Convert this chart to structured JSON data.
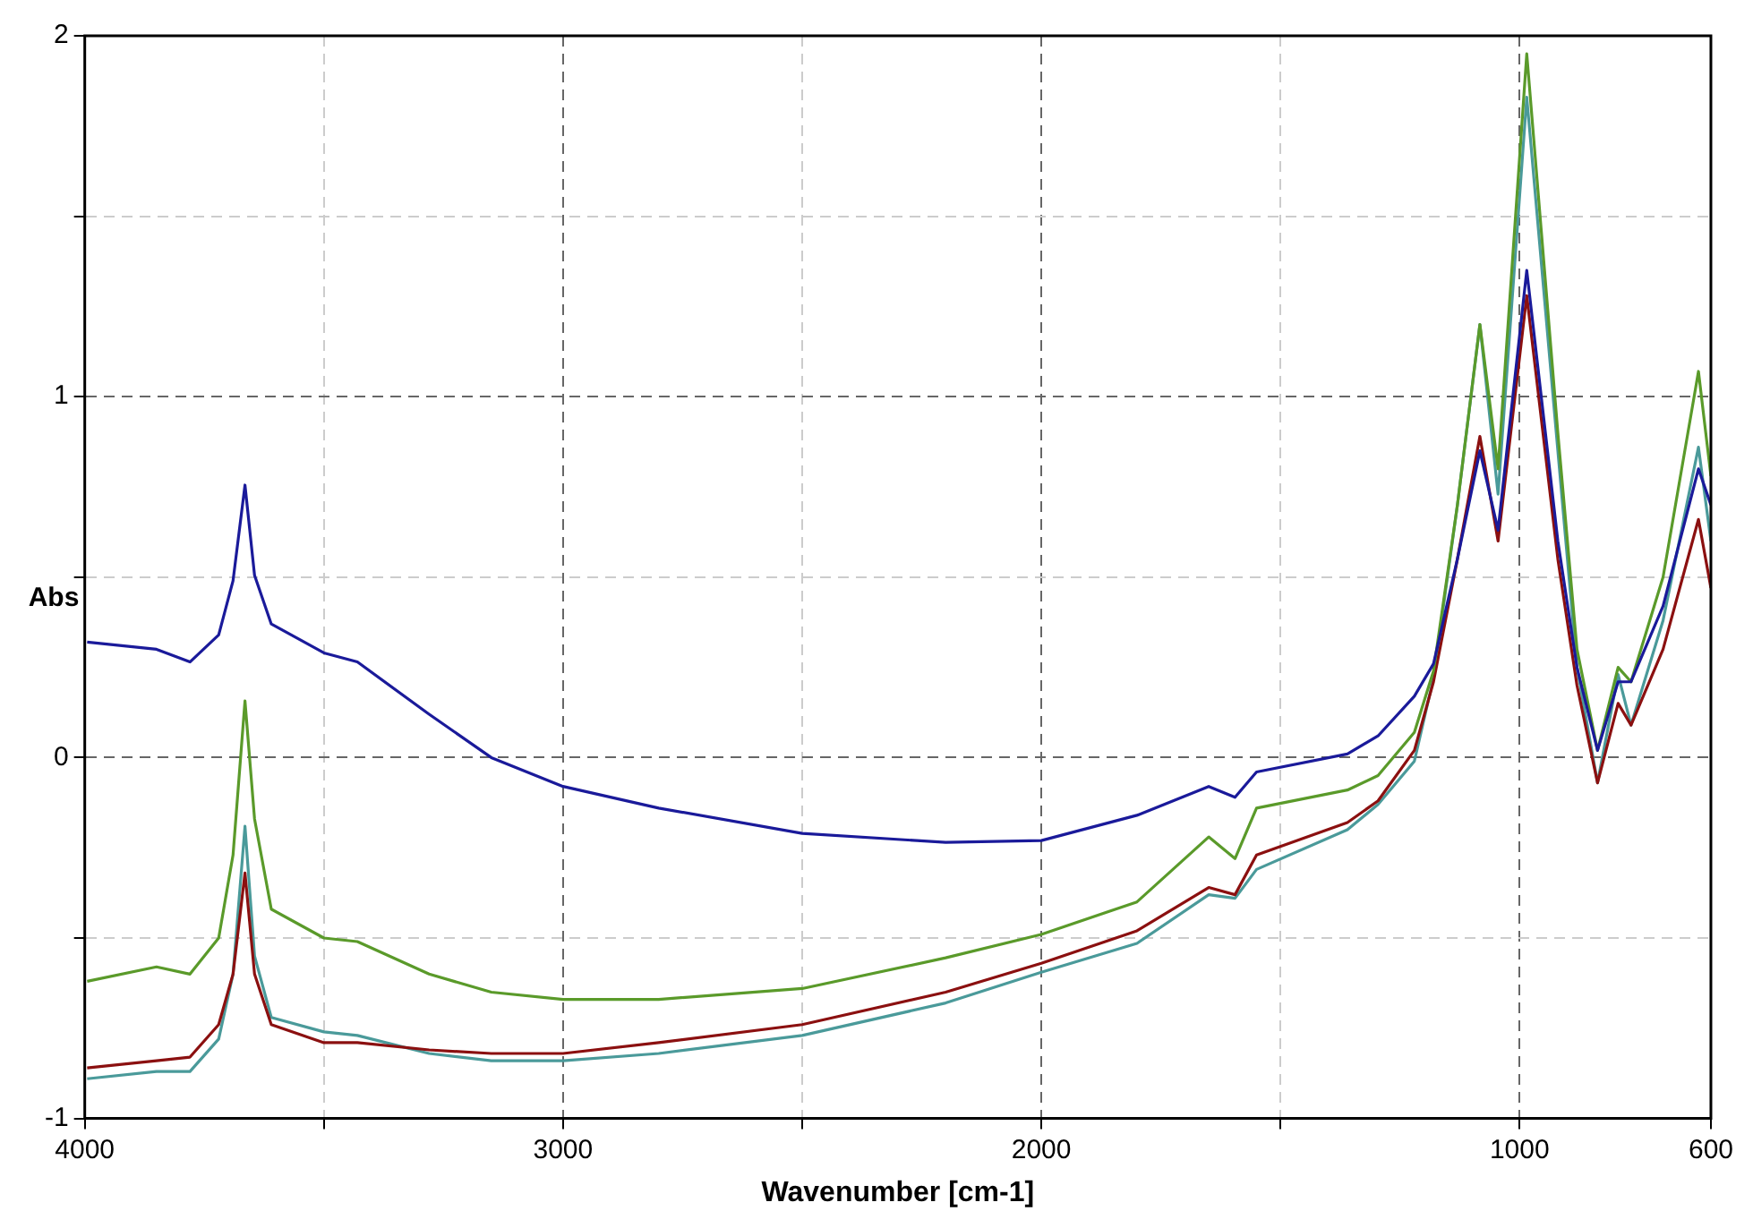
{
  "chart_data": {
    "type": "line",
    "xlabel": "Wavenumber [cm-1]",
    "ylabel": "Abs",
    "x": [
      3995,
      3850,
      3780,
      3720,
      3690,
      3665,
      3645,
      3610,
      3500,
      3430,
      3280,
      3150,
      3000,
      2800,
      2500,
      2200,
      2000,
      1800,
      1650,
      1595,
      1550,
      1360,
      1296,
      1220,
      1180,
      1130,
      1083,
      1045,
      985,
      920,
      880,
      837,
      794,
      767,
      700,
      626,
      600
    ],
    "series": [
      {
        "color": "#1a1a9a",
        "values": [
          0.32,
          0.3,
          0.265,
          0.34,
          0.49,
          0.755,
          0.505,
          0.37,
          0.29,
          0.265,
          0.12,
          0,
          -0.08,
          -0.14,
          -0.21,
          -0.235,
          -0.23,
          -0.16,
          -0.08,
          -0.11,
          -0.04,
          0.01,
          0.06,
          0.17,
          0.26,
          0.55,
          0.85,
          0.63,
          1.35,
          0.6,
          0.25,
          0.02,
          0.21,
          0.21,
          0.42,
          0.8,
          0.7
        ]
      },
      {
        "color": "#5a9a2a",
        "values": [
          -0.62,
          -0.58,
          -0.6,
          -0.5,
          -0.27,
          0.157,
          -0.17,
          -0.42,
          -0.5,
          -0.51,
          -0.6,
          -0.65,
          -0.67,
          -0.67,
          -0.64,
          -0.555,
          -0.49,
          -0.4,
          -0.22,
          -0.28,
          -0.14,
          -0.09,
          -0.05,
          0.07,
          0.24,
          0.7,
          1.2,
          0.8,
          1.95,
          0.9,
          0.3,
          0.02,
          0.25,
          0.21,
          0.5,
          1.07,
          0.78
        ]
      },
      {
        "color": "#8b1010",
        "values": [
          -0.86,
          -0.84,
          -0.83,
          -0.74,
          -0.6,
          -0.32,
          -0.6,
          -0.74,
          -0.79,
          -0.79,
          -0.81,
          -0.82,
          -0.82,
          -0.79,
          -0.74,
          -0.65,
          -0.57,
          -0.48,
          -0.36,
          -0.38,
          -0.27,
          -0.18,
          -0.12,
          0.02,
          0.21,
          0.55,
          0.89,
          0.6,
          1.28,
          0.55,
          0.2,
          -0.07,
          0.15,
          0.09,
          0.3,
          0.66,
          0.47
        ]
      },
      {
        "color": "#4a9a9a",
        "values": [
          -0.89,
          -0.87,
          -0.87,
          -0.78,
          -0.6,
          -0.19,
          -0.55,
          -0.72,
          -0.76,
          -0.77,
          -0.82,
          -0.84,
          -0.84,
          -0.82,
          -0.77,
          -0.68,
          -0.595,
          -0.515,
          -0.38,
          -0.39,
          -0.31,
          -0.2,
          -0.13,
          -0.01,
          0.22,
          0.7,
          1.2,
          0.73,
          1.83,
          0.85,
          0.25,
          -0.07,
          0.23,
          0.09,
          0.38,
          0.86,
          0.6
        ]
      }
    ],
    "xlim": [
      4000,
      600
    ],
    "xticks": [
      4000,
      {
        "value": 3500,
        "label": null
      },
      3000,
      {
        "value": 2500,
        "label": null
      },
      2000,
      {
        "value": 1500,
        "label": null
      },
      1000,
      600
    ],
    "ylim": [
      -1,
      2
    ],
    "yticks": [
      -1,
      {
        "value": -0.5,
        "label": null
      },
      0,
      {
        "value": 0.5,
        "label": null
      },
      1,
      {
        "value": 1.5,
        "label": null
      },
      2
    ],
    "grid": true,
    "legend": false,
    "marker": "none",
    "line_style": "solid"
  }
}
